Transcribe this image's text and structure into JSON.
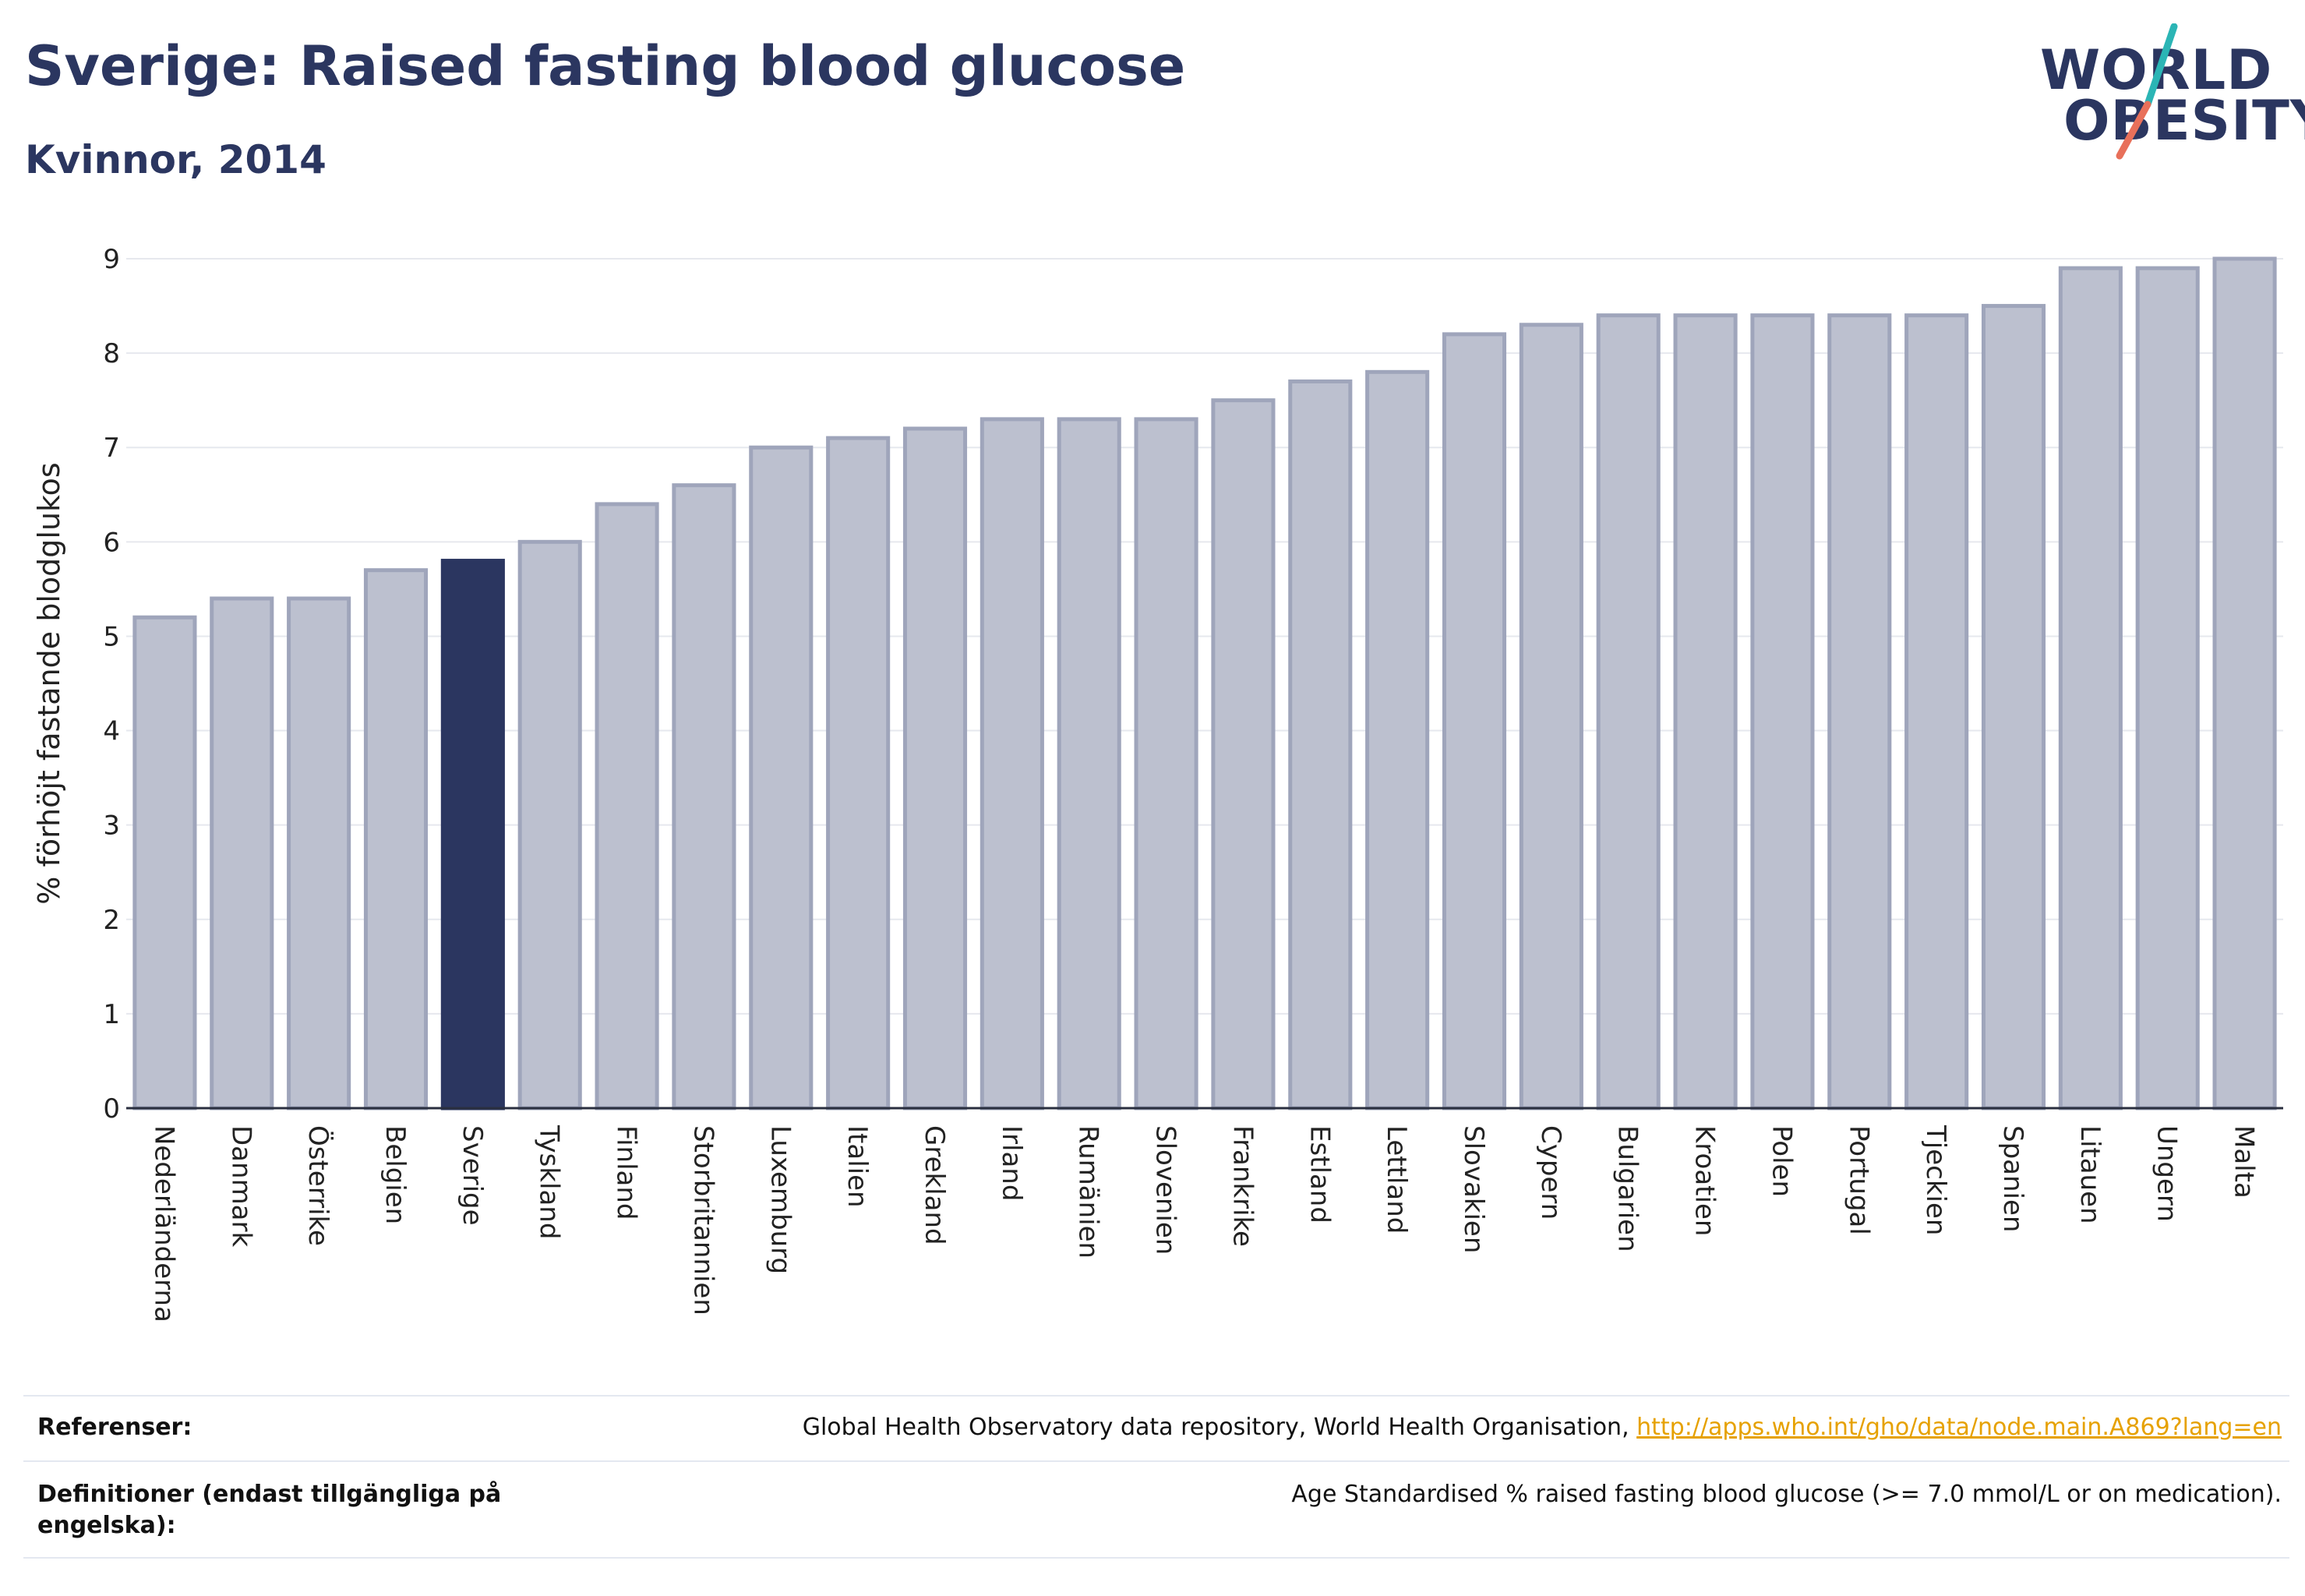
{
  "header": {
    "title": "Sverige: Raised fasting blood glucose",
    "subtitle": "Kvinnor, 2014"
  },
  "logo": {
    "line1": "WORLD",
    "line2": "OBESITY",
    "colors": {
      "text": "#2b3660",
      "slash_top": "#2bb5b5",
      "slash_bottom": "#e8705a"
    }
  },
  "chart_data": {
    "type": "bar",
    "title": "",
    "xlabel": "",
    "ylabel": "% förhöjt fastande blodglukos",
    "ylim": [
      0,
      9
    ],
    "yticks": [
      0,
      1,
      2,
      3,
      4,
      5,
      6,
      7,
      8,
      9
    ],
    "grid": true,
    "highlight": "Sverige",
    "colors": {
      "bar": "#bcc0cf",
      "bar_edge": "#9fa5bb",
      "highlight": "#2b3660",
      "grid": "#e6e8ee"
    },
    "categories": [
      "Nederländerna",
      "Danmark",
      "Österrike",
      "Belgien",
      "Sverige",
      "Tyskland",
      "Finland",
      "Storbritannien",
      "Luxemburg",
      "Italien",
      "Grekland",
      "Irland",
      "Rumänien",
      "Slovenien",
      "Frankrike",
      "Estland",
      "Lettland",
      "Slovakien",
      "Cypern",
      "Bulgarien",
      "Kroatien",
      "Polen",
      "Portugal",
      "Tjeckien",
      "Spanien",
      "Litauen",
      "Ungern",
      "Malta"
    ],
    "values": [
      5.2,
      5.4,
      5.4,
      5.7,
      5.8,
      6.0,
      6.4,
      6.6,
      7.0,
      7.1,
      7.2,
      7.3,
      7.3,
      7.3,
      7.5,
      7.7,
      7.8,
      8.2,
      8.3,
      8.4,
      8.4,
      8.4,
      8.4,
      8.4,
      8.5,
      8.9,
      8.9,
      9.0
    ]
  },
  "footer": {
    "references_label": "Referenser:",
    "references_text": "Global Health Observatory data repository, World Health Organisation, ",
    "references_link": "http://apps.who.int/gho/data/node.main.A869?lang=en",
    "definitions_label": "Definitioner (endast tillgängliga på engelska):",
    "definitions_text": "Age Standardised % raised fasting blood glucose (>= 7.0 mmol/L or on medication)."
  }
}
